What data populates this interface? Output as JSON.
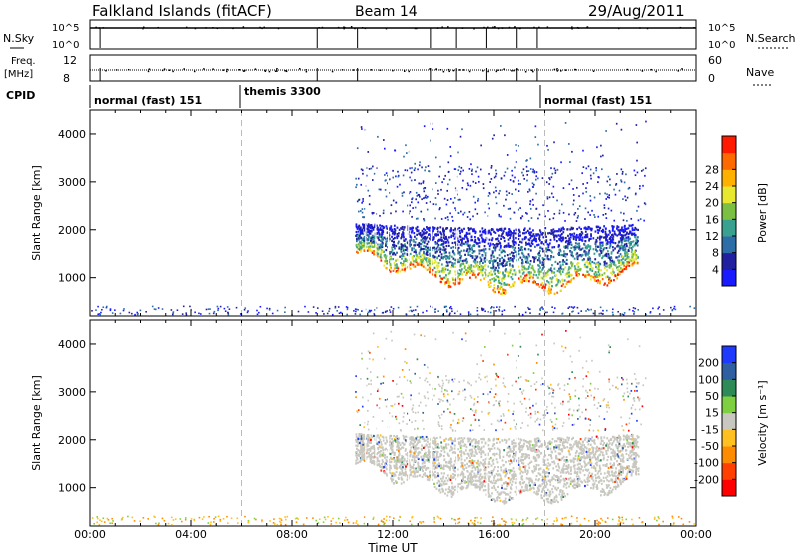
{
  "header": {
    "station": "Falkland Islands (fitACF)",
    "beam": "Beam 14",
    "date": "29/Aug/2011"
  },
  "panels": {
    "nsky_label": "N.Sky",
    "nsearch_label": "N.Search",
    "freq_label": "Freq.",
    "freq_unit": "[MHz]",
    "nave_label": "Nave",
    "cpid_label": "CPID",
    "nsky_ticks": [
      "10^5",
      "10^0"
    ],
    "nsearch_ticks": [
      "10^5",
      "10^0"
    ],
    "freq_ticks": [
      "12",
      "8"
    ],
    "nave_ticks": [
      "60",
      "0"
    ],
    "cpid_modes": [
      {
        "label": "normal (fast) 151",
        "start_hour": 0
      },
      {
        "label": "themis 3300",
        "start_hour": 6
      },
      {
        "label": "normal (fast) 151",
        "start_hour": 18
      }
    ]
  },
  "chart_data": [
    {
      "type": "heatmap",
      "name": "power",
      "ylabel": "Slant Range [km]",
      "xlabel": "Time UT",
      "xlim_hours": [
        0,
        24
      ],
      "ylim": [
        200,
        4500
      ],
      "yticks": [
        "1000",
        "2000",
        "3000",
        "4000"
      ],
      "colorbar": {
        "label": "Power [dB]",
        "ticks": [
          "4",
          "8",
          "12",
          "16",
          "20",
          "24",
          "28"
        ],
        "colors": [
          "#1a1aff",
          "#2020a0",
          "#2e6ea8",
          "#3aa090",
          "#7bc043",
          "#e8e830",
          "#ffb000",
          "#ff6a00",
          "#ff1a00"
        ]
      },
      "mode_boundaries_hours": [
        6,
        18
      ],
      "echo_region": {
        "start_hour": 10.5,
        "end_hour": 22.5,
        "core_range_km": [
          900,
          2100
        ],
        "sparse_range_km": [
          2200,
          4300
        ]
      }
    },
    {
      "type": "heatmap",
      "name": "velocity",
      "ylabel": "Slant Range [km]",
      "xlabel": "Time UT",
      "xlim_hours": [
        0,
        24
      ],
      "ylim": [
        200,
        4500
      ],
      "yticks": [
        "1000",
        "2000",
        "3000",
        "4000"
      ],
      "colorbar": {
        "label": "Velocity [m s⁻¹]",
        "ticks": [
          "200",
          "100",
          "50",
          "15",
          "-15",
          "-50",
          "-100",
          "-200"
        ],
        "colors": [
          "#1e3aff",
          "#2f5fa0",
          "#2e8b57",
          "#7fd040",
          "#c8c8c0",
          "#ffc020",
          "#ff8c00",
          "#ff4000",
          "#ff0000"
        ]
      },
      "mode_boundaries_hours": [
        6,
        18
      ],
      "echo_region": {
        "start_hour": 10.5,
        "end_hour": 22.5,
        "core_range_km": [
          900,
          2100
        ],
        "sparse_range_km": [
          2200,
          4300
        ]
      }
    }
  ],
  "x_axis": {
    "label": "Time UT",
    "ticks": [
      "00:00",
      "04:00",
      "08:00",
      "12:00",
      "16:00",
      "20:00",
      "00:00"
    ]
  }
}
